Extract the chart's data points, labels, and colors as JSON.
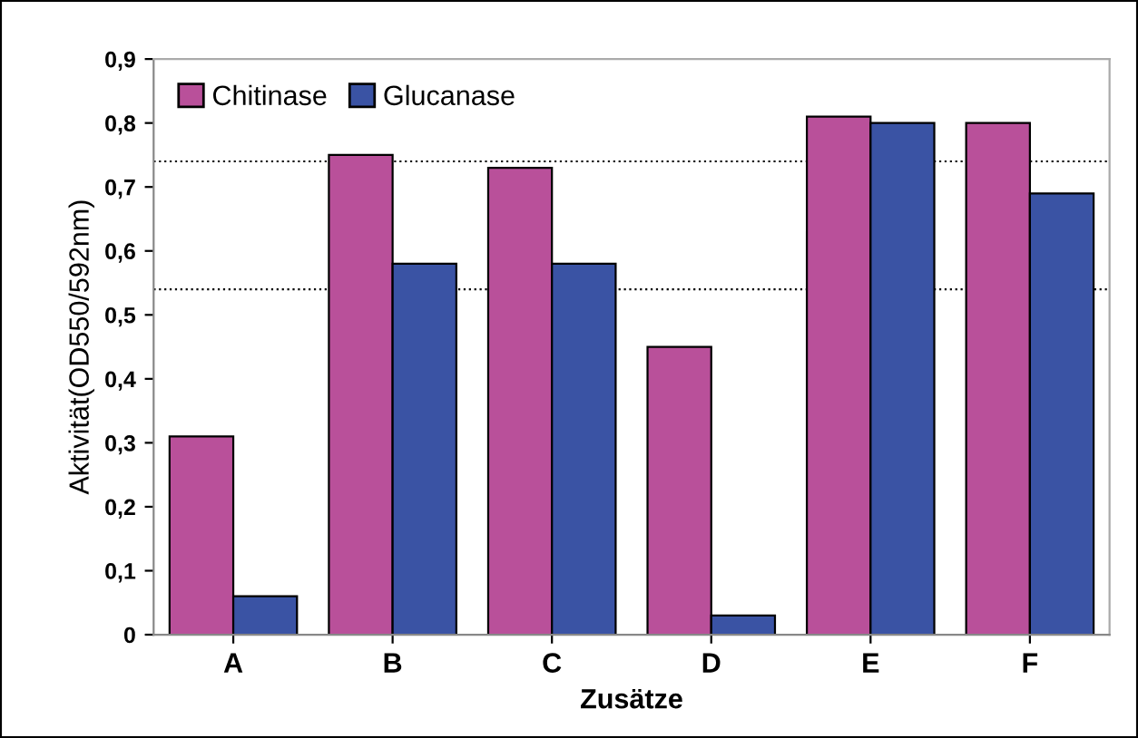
{
  "chart_data": {
    "type": "bar",
    "xlabel": "Zusätze",
    "ylabel": "Aktivität(OD550/592nm)",
    "categories": [
      "A",
      "B",
      "C",
      "D",
      "E",
      "F"
    ],
    "series": [
      {
        "name": "Chitinase",
        "color": "#b9509a",
        "values": [
          0.31,
          0.75,
          0.73,
          0.45,
          0.81,
          0.8
        ]
      },
      {
        "name": "Glucanase",
        "color": "#3a53a4",
        "values": [
          0.06,
          0.58,
          0.58,
          0.03,
          0.8,
          0.69
        ]
      }
    ],
    "ylim": [
      0,
      0.9
    ],
    "yticks": [
      {
        "value": 0,
        "label": "0"
      },
      {
        "value": 0.1,
        "label": "0,1"
      },
      {
        "value": 0.2,
        "label": "0,2"
      },
      {
        "value": 0.3,
        "label": "0,3"
      },
      {
        "value": 0.4,
        "label": "0,4"
      },
      {
        "value": 0.5,
        "label": "0,5"
      },
      {
        "value": 0.6,
        "label": "0,6"
      },
      {
        "value": 0.7,
        "label": "0,7"
      },
      {
        "value": 0.8,
        "label": "0,8"
      },
      {
        "value": 0.9,
        "label": "0,9"
      }
    ],
    "ref_lines": [
      {
        "axis": "y",
        "value": 0.74,
        "color": "#000000",
        "line_style": "dotted"
      },
      {
        "axis": "y",
        "value": 0.54,
        "color": "#000000",
        "line_style": "dotted"
      }
    ],
    "grid": false,
    "legend": "top left"
  }
}
